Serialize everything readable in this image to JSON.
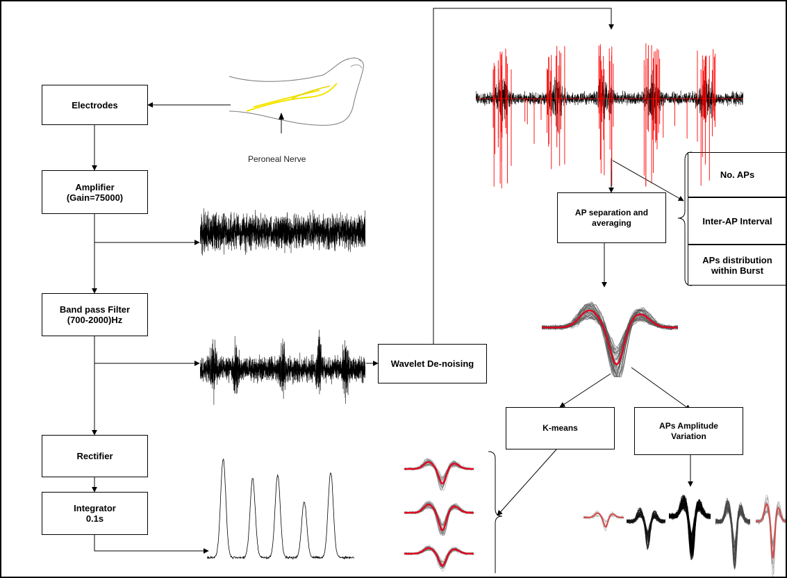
{
  "blocks": {
    "electrodes": "Electrodes",
    "amplifier": "Amplifier\n(Gain=75000)",
    "bandpass": "Band pass Filter\n(700-2000)Hz",
    "rectifier": "Rectifier",
    "integrator": "Integrator\n0.1s",
    "wavelet": "Wavelet De-noising",
    "ap_sep": "AP separation and\naveraging",
    "kmeans": "K-means",
    "amp_var": "APs Amplitude\nVariation"
  },
  "outputs": {
    "no_aps": "No. APs",
    "inter_ap": "Inter-AP Interval",
    "ap_dist": "APs distribution\nwithin Burst"
  },
  "leg_label": "Peroneal Nerve",
  "colors": {
    "line": "#000000",
    "signal": "#000000",
    "detected_ap": "#ff0000",
    "mean_waveform": "#e8001a",
    "overlay_trace": "#808080",
    "nerve": "#f5e400"
  }
}
